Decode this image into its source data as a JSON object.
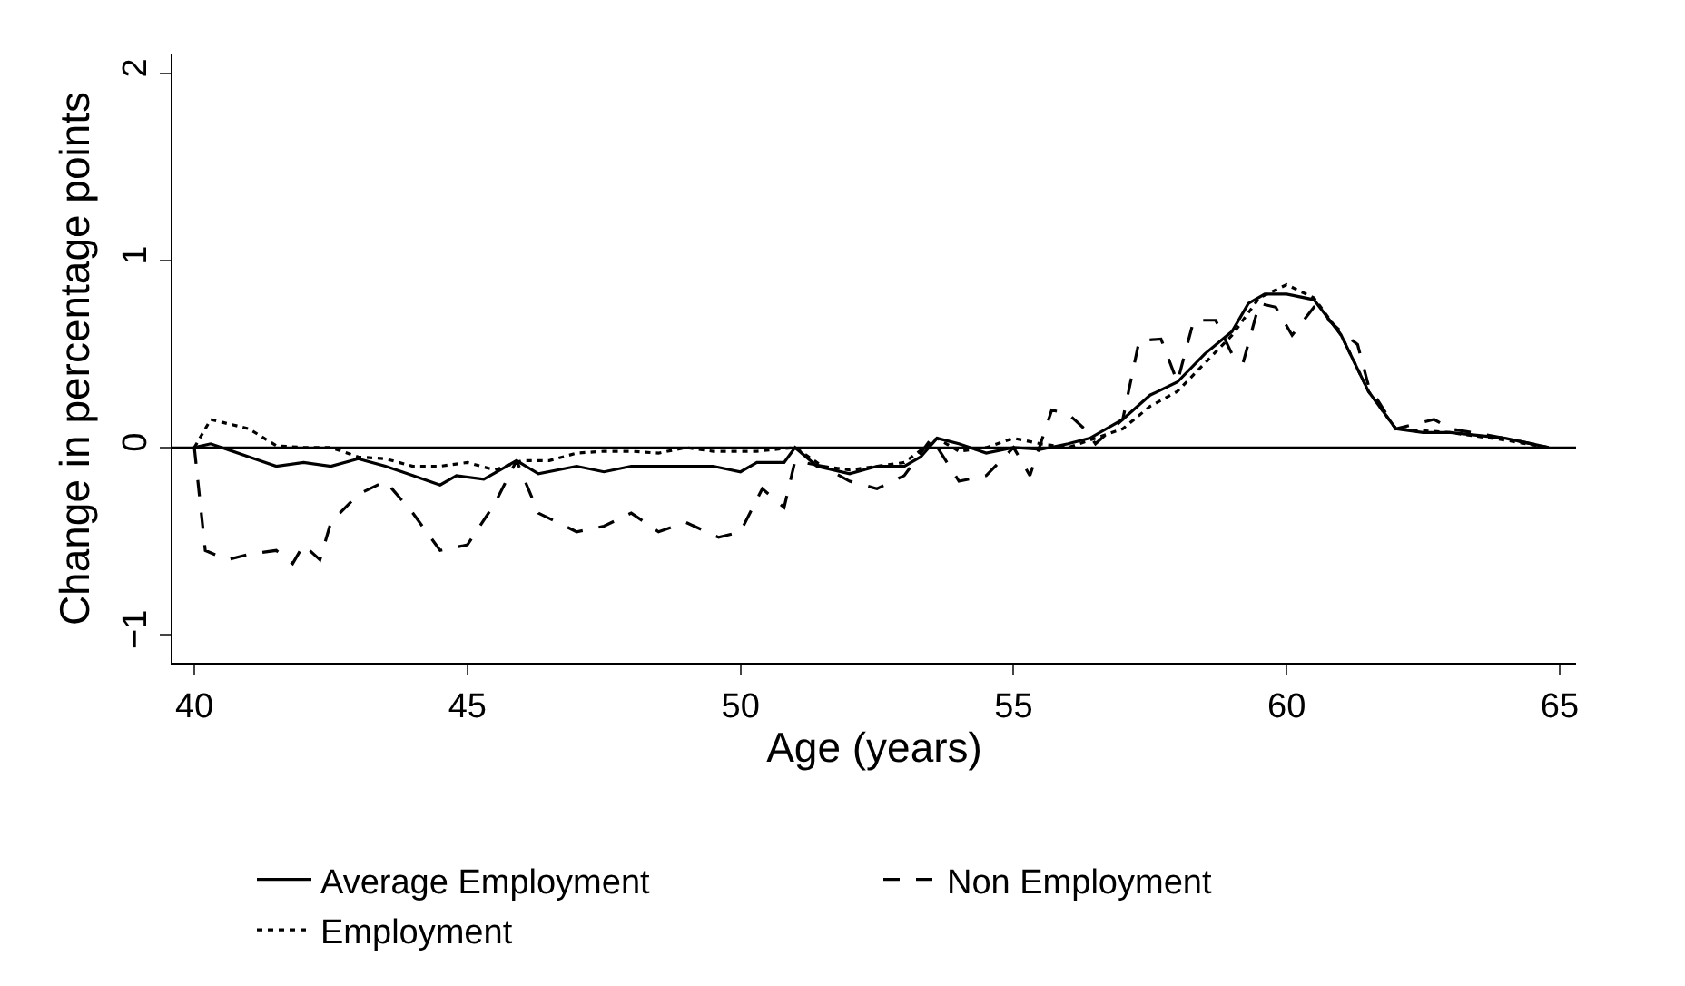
{
  "chart_data": {
    "type": "line",
    "xlabel": "Age (years)",
    "ylabel": "Change in percentage points",
    "xlim": [
      39.6,
      65.3
    ],
    "xticks": [
      40,
      45,
      50,
      55,
      60,
      65
    ],
    "ylim": [
      -1.15,
      2.1
    ],
    "yticks": [
      {
        "value": -1,
        "label": "−1"
      },
      0,
      1,
      2
    ],
    "legend": "bottom",
    "marker": "none",
    "ref_lines": [
      {
        "axis": "y",
        "value": 0,
        "color": "#000000",
        "line_style": "solid"
      }
    ],
    "series": [
      {
        "name": "Average Employment",
        "color": "#000000",
        "line_style": "solid",
        "x": [
          40,
          40.3,
          41,
          41.5,
          42,
          42.5,
          43,
          43.5,
          44,
          44.5,
          44.8,
          45.3,
          45.9,
          46.3,
          47,
          47.5,
          48,
          48.5,
          49,
          49.5,
          50,
          50.3,
          50.8,
          51,
          51.4,
          52,
          52.5,
          53,
          53.3,
          53.6,
          54,
          54.5,
          55,
          55.5,
          56,
          56.4,
          57,
          57.5,
          58,
          58.5,
          59,
          59.3,
          59.6,
          60,
          60.5,
          61,
          61.5,
          62,
          62.5,
          63,
          64,
          64.8
        ],
        "values": [
          0,
          0.02,
          -0.05,
          -0.1,
          -0.08,
          -0.1,
          -0.06,
          -0.1,
          -0.15,
          -0.2,
          -0.15,
          -0.17,
          -0.07,
          -0.14,
          -0.1,
          -0.13,
          -0.1,
          -0.1,
          -0.1,
          -0.1,
          -0.13,
          -0.08,
          -0.08,
          0.0,
          -0.1,
          -0.14,
          -0.1,
          -0.1,
          -0.05,
          0.05,
          0.02,
          -0.03,
          0.0,
          -0.01,
          0.02,
          0.05,
          0.15,
          0.28,
          0.35,
          0.5,
          0.62,
          0.77,
          0.82,
          0.82,
          0.79,
          0.6,
          0.3,
          0.1,
          0.08,
          0.08,
          0.05,
          0.0
        ]
      },
      {
        "name": "Non Employment",
        "color": "#000000",
        "line_style": "dashed",
        "x": [
          40,
          40.2,
          40.6,
          41,
          41.5,
          41.8,
          42,
          42.3,
          42.5,
          43,
          43.5,
          44,
          44.5,
          45,
          45.5,
          45.9,
          46.3,
          47,
          47.5,
          48,
          48.5,
          49,
          49.6,
          50,
          50.4,
          50.8,
          51,
          51.5,
          52,
          52.5,
          53,
          53.5,
          54,
          54.5,
          55,
          55.3,
          55.7,
          56,
          56.3,
          56.5,
          57,
          57.3,
          57.7,
          58,
          58.3,
          58.7,
          59,
          59.2,
          59.5,
          59.8,
          60.1,
          60.5,
          61,
          61.3,
          61.5,
          62,
          62.7,
          63,
          64,
          64.8
        ],
        "values": [
          0,
          -0.55,
          -0.6,
          -0.57,
          -0.55,
          -0.62,
          -0.52,
          -0.6,
          -0.4,
          -0.25,
          -0.18,
          -0.35,
          -0.55,
          -0.52,
          -0.3,
          -0.07,
          -0.35,
          -0.45,
          -0.42,
          -0.35,
          -0.45,
          -0.4,
          -0.48,
          -0.45,
          -0.22,
          -0.32,
          -0.07,
          -0.1,
          -0.18,
          -0.22,
          -0.15,
          0.05,
          -0.18,
          -0.15,
          0.0,
          -0.15,
          0.2,
          0.18,
          0.1,
          0.02,
          0.15,
          0.57,
          0.58,
          0.35,
          0.68,
          0.68,
          0.5,
          0.45,
          0.77,
          0.75,
          0.6,
          0.75,
          0.62,
          0.55,
          0.33,
          0.1,
          0.15,
          0.1,
          0.05,
          0.0
        ]
      },
      {
        "name": "Employment",
        "color": "#000000",
        "line_style": "dotted",
        "x": [
          40,
          40.3,
          41,
          41.5,
          42,
          42.5,
          43,
          43.5,
          44,
          44.5,
          45,
          45.5,
          46,
          46.5,
          47,
          47.5,
          48,
          48.5,
          49,
          49.5,
          50,
          50.3,
          51,
          51.5,
          52,
          52.5,
          53,
          53.6,
          54,
          54.5,
          55,
          55.5,
          56,
          56.5,
          57,
          57.5,
          58,
          58.5,
          59,
          59.5,
          60,
          60.5,
          61,
          61.5,
          62,
          63,
          64,
          64.8
        ],
        "values": [
          0,
          0.15,
          0.1,
          0.01,
          0.0,
          0.0,
          -0.05,
          -0.06,
          -0.1,
          -0.1,
          -0.08,
          -0.12,
          -0.07,
          -0.07,
          -0.03,
          -0.02,
          -0.02,
          -0.03,
          0.0,
          -0.02,
          -0.02,
          -0.02,
          0.0,
          -0.1,
          -0.12,
          -0.1,
          -0.08,
          0.05,
          -0.02,
          0.0,
          0.05,
          0.02,
          0.0,
          0.05,
          0.1,
          0.22,
          0.3,
          0.45,
          0.6,
          0.8,
          0.87,
          0.8,
          0.6,
          0.3,
          0.1,
          0.08,
          0.04,
          0.0
        ]
      }
    ]
  }
}
